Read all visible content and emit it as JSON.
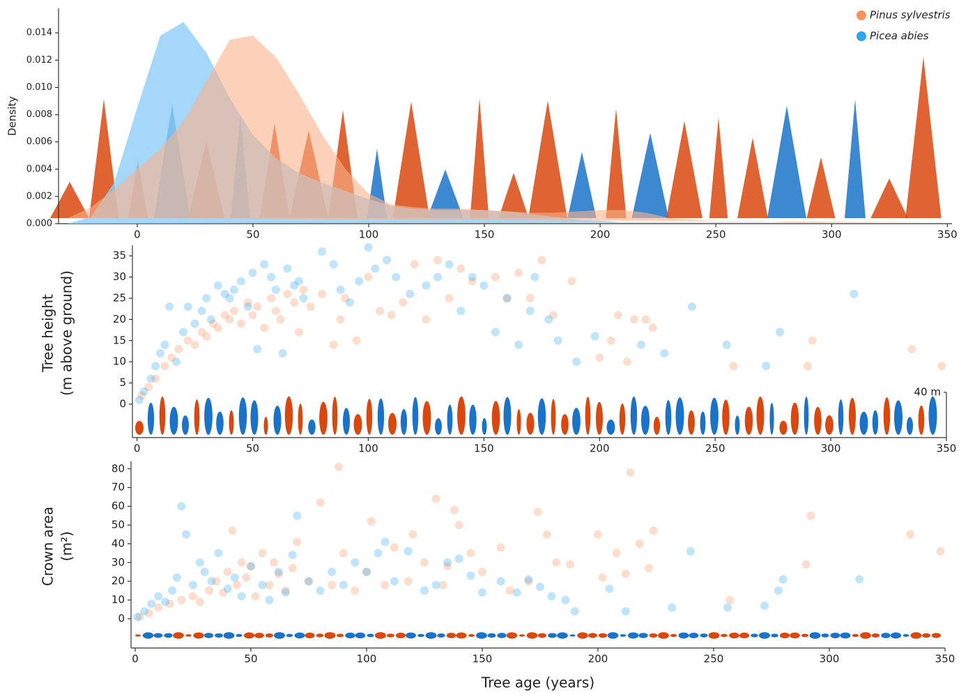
{
  "chart_data": [
    {
      "type": "area",
      "ylabel": "Density",
      "legend": "upper right",
      "xlim": [
        -34,
        352
      ],
      "xticks": [
        0,
        50,
        100,
        150,
        200,
        250,
        300,
        350
      ],
      "ylim": [
        0,
        0.0158
      ],
      "yticks": [
        {
          "value": 0,
          "label": "0.000"
        },
        0.002,
        0.004,
        0.006,
        0.008,
        {
          "value": 0.01,
          "label": "0.010"
        },
        0.012,
        0.014
      ],
      "x": [
        -30,
        -20,
        -10,
        0,
        10,
        20,
        30,
        40,
        50,
        60,
        70,
        80,
        90,
        100,
        110,
        120,
        130,
        140,
        150,
        160,
        170,
        180,
        190,
        200,
        210,
        220,
        230,
        240,
        250,
        260,
        270,
        280,
        290,
        300,
        310,
        320,
        330,
        340,
        350
      ],
      "series": [
        {
          "name": "Pinus sylvestris",
          "color": "#f7935c",
          "fill": "#fbb28a",
          "values": [
            0.0004,
            0.0012,
            0.0025,
            0.004,
            0.0055,
            0.0075,
            0.0105,
            0.0135,
            0.0138,
            0.0122,
            0.0095,
            0.0065,
            0.004,
            0.0022,
            0.0014,
            0.0012,
            0.0011,
            0.0011,
            0.001,
            0.0009,
            0.0008,
            0.0008,
            0.0009,
            0.001,
            0.001,
            0.0008,
            0.0004,
            0.0003,
            0.0002,
            0.0002,
            0.0002,
            0.0001,
            0.0001,
            0.0001,
            0.0001,
            0.0001,
            0.0001,
            0.0001,
            0.0001
          ]
        },
        {
          "name": "Picea abies",
          "color": "#2ea6ef",
          "fill": "#8ecdf9",
          "values": [
            0,
            0.0005,
            0.003,
            0.0085,
            0.0138,
            0.0148,
            0.0125,
            0.0092,
            0.0065,
            0.0048,
            0.0037,
            0.003,
            0.0024,
            0.0018,
            0.0013,
            0.0011,
            0.001,
            0.001,
            0.001,
            0.0009,
            0.0007,
            0.0005,
            0.0003,
            0.0002,
            0.0001,
            0.0001,
            0.0001,
            0.0001,
            0.0001,
            0.0001,
            0.0001,
            0.0001,
            0.0001,
            0.0001,
            0.0001,
            0.0001,
            0.0001,
            0.0001,
            0.0001
          ]
        }
      ]
    },
    {
      "type": "scatter",
      "ylabel": [
        "Tree height",
        "(m above ground)"
      ],
      "scale_label": "40 m",
      "xlim": [
        -2,
        350
      ],
      "xticks": [
        0,
        50,
        100,
        150,
        200,
        250,
        300,
        350
      ],
      "ylim": [
        -7.9,
        37.5
      ],
      "yticks": [
        0,
        5,
        10,
        15,
        20,
        25,
        30,
        35
      ],
      "series": [
        {
          "name": "Pinus sylvestris",
          "color": "#f7935c",
          "x": [
            2,
            5,
            8,
            12,
            15,
            18,
            22,
            25,
            28,
            30,
            33,
            35,
            38,
            40,
            42,
            45,
            48,
            50,
            52,
            55,
            58,
            60,
            62,
            65,
            68,
            70,
            72,
            75,
            80,
            85,
            88,
            90,
            95,
            100,
            105,
            110,
            115,
            120,
            125,
            130,
            135,
            140,
            145,
            155,
            160,
            165,
            170,
            175,
            180,
            188,
            200,
            205,
            208,
            212,
            215,
            220,
            223,
            258,
            290,
            292,
            335,
            348
          ],
          "values": [
            2,
            4,
            6,
            9,
            11,
            13,
            15,
            14,
            17,
            16,
            19,
            18,
            21,
            20,
            22,
            19,
            24,
            21,
            23,
            18,
            25,
            22,
            20,
            26,
            24,
            17,
            27,
            23,
            26,
            14,
            20,
            25,
            15,
            30,
            22,
            21,
            24,
            33,
            20,
            34,
            25,
            32,
            29,
            30,
            25,
            31,
            25,
            34,
            21,
            29,
            11,
            15,
            21,
            10,
            20,
            20,
            18,
            9,
            9,
            15,
            13,
            9
          ]
        },
        {
          "name": "Picea abies",
          "color": "#2ea6ef",
          "x": [
            1,
            3,
            6,
            8,
            10,
            12,
            14,
            17,
            20,
            22,
            25,
            28,
            30,
            32,
            35,
            38,
            40,
            42,
            45,
            48,
            50,
            52,
            55,
            58,
            60,
            63,
            65,
            68,
            70,
            72,
            80,
            85,
            88,
            92,
            96,
            100,
            103,
            108,
            112,
            118,
            125,
            130,
            135,
            140,
            145,
            150,
            155,
            160,
            165,
            170,
            172,
            178,
            182,
            190,
            198,
            218,
            228,
            240,
            255,
            272,
            278,
            310
          ],
          "values": [
            1,
            3,
            6,
            9,
            12,
            14,
            23,
            10,
            17,
            23,
            19,
            22,
            25,
            20,
            28,
            26,
            25,
            27,
            29,
            23,
            31,
            13,
            33,
            30,
            27,
            12,
            32,
            28,
            29,
            25,
            36,
            33,
            27,
            24,
            29,
            37,
            32,
            34,
            30,
            26,
            28,
            30,
            33,
            22,
            30,
            28,
            17,
            25,
            14,
            22,
            30,
            20,
            15,
            10,
            16,
            14,
            12,
            23,
            14,
            9,
            17,
            26
          ]
        }
      ]
    },
    {
      "type": "scatter",
      "ylabel": [
        "Crown area",
        "(m²)"
      ],
      "xlabel": "Tree age (years)",
      "xlim": [
        -1.8,
        350
      ],
      "xticks": [
        0,
        50,
        100,
        150,
        200,
        250,
        300,
        350
      ],
      "ylim": [
        -15.6,
        84
      ],
      "yticks": [
        0,
        10,
        20,
        30,
        40,
        50,
        60,
        70,
        80
      ],
      "series": [
        {
          "name": "Pinus sylvestris",
          "color": "#f7935c",
          "x": [
            2,
            6,
            10,
            15,
            20,
            25,
            28,
            32,
            35,
            38,
            40,
            42,
            44,
            46,
            48,
            50,
            52,
            55,
            58,
            60,
            62,
            65,
            68,
            70,
            75,
            80,
            85,
            88,
            90,
            95,
            100,
            102,
            108,
            112,
            118,
            120,
            125,
            130,
            133,
            135,
            138,
            140,
            145,
            150,
            158,
            162,
            170,
            174,
            178,
            182,
            188,
            200,
            202,
            208,
            212,
            214,
            218,
            222,
            224,
            257,
            290,
            292,
            335,
            348
          ],
          "values": [
            1,
            3,
            6,
            8,
            10,
            12,
            9,
            15,
            20,
            14,
            25,
            47,
            18,
            30,
            22,
            28,
            12,
            35,
            18,
            30,
            24,
            15,
            27,
            41,
            20,
            62,
            18,
            81,
            35,
            15,
            25,
            52,
            18,
            38,
            20,
            45,
            30,
            64,
            18,
            28,
            58,
            50,
            35,
            25,
            38,
            15,
            20,
            57,
            45,
            30,
            29,
            45,
            22,
            35,
            24,
            78,
            40,
            27,
            47,
            10,
            29,
            55,
            45,
            36
          ]
        },
        {
          "name": "Picea abies",
          "color": "#2ea6ef",
          "x": [
            1,
            4,
            7,
            10,
            13,
            16,
            18,
            20,
            22,
            25,
            28,
            30,
            33,
            36,
            40,
            43,
            46,
            50,
            55,
            58,
            62,
            65,
            68,
            70,
            75,
            80,
            85,
            90,
            95,
            100,
            105,
            108,
            112,
            118,
            125,
            130,
            135,
            140,
            145,
            150,
            158,
            165,
            170,
            175,
            180,
            186,
            190,
            205,
            212,
            232,
            240,
            256,
            272,
            278,
            280,
            313
          ],
          "values": [
            1,
            4,
            8,
            12,
            9,
            15,
            22,
            60,
            45,
            18,
            30,
            25,
            20,
            35,
            16,
            22,
            12,
            28,
            18,
            10,
            25,
            14,
            34,
            55,
            20,
            15,
            25,
            18,
            30,
            25,
            35,
            41,
            20,
            36,
            15,
            18,
            30,
            32,
            23,
            14,
            20,
            14,
            21,
            17,
            12,
            10,
            4,
            16,
            4,
            6,
            36,
            6,
            7,
            15,
            21,
            21
          ]
        }
      ]
    }
  ]
}
